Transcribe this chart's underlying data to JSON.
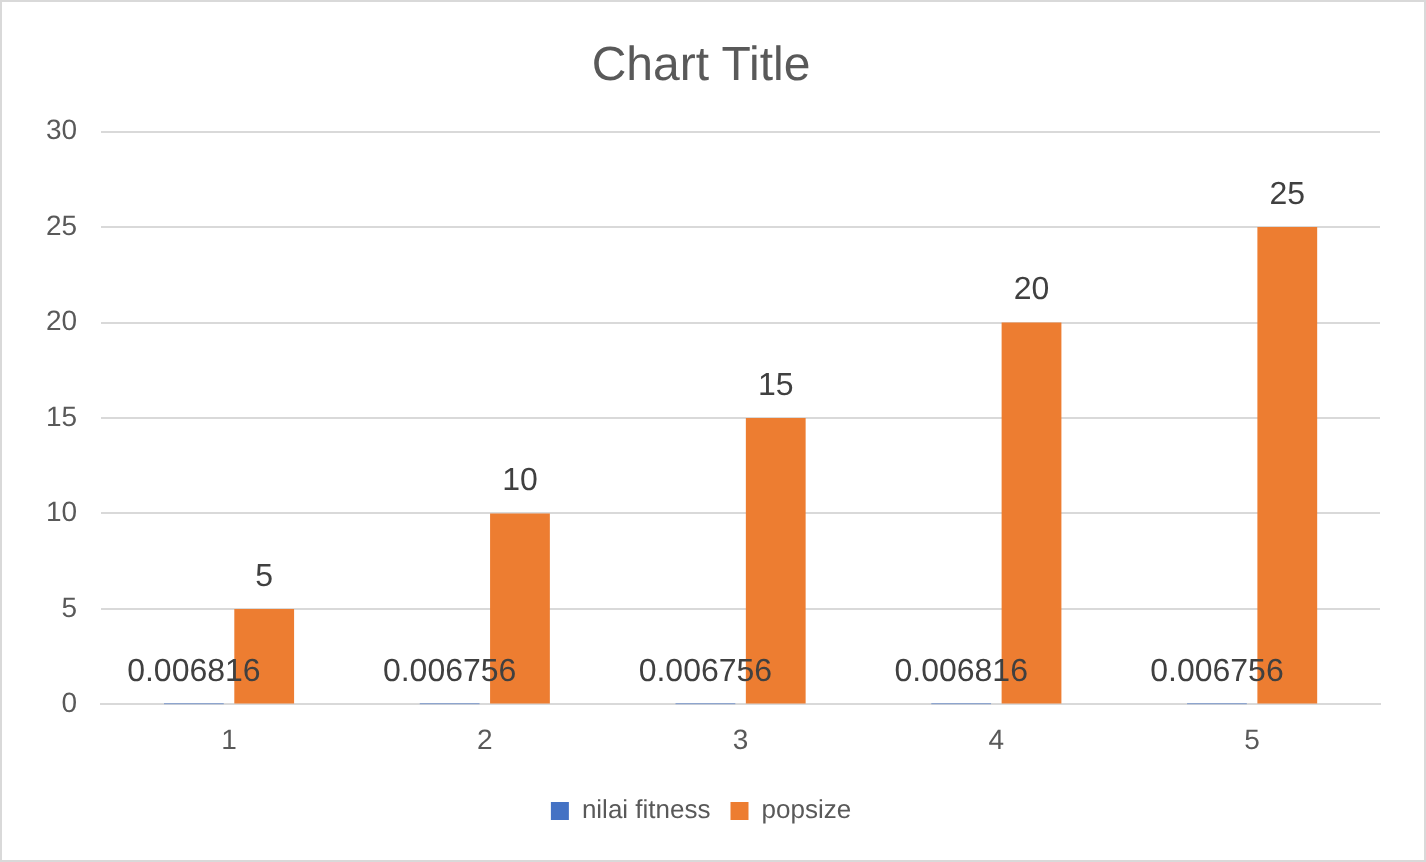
{
  "chart_data": {
    "type": "bar",
    "title": "Chart Title",
    "categories": [
      "1",
      "2",
      "3",
      "4",
      "5"
    ],
    "series": [
      {
        "name": "nilai fitness",
        "color": "#4472c4",
        "values": [
          0.006816,
          0.006756,
          0.006756,
          0.006816,
          0.006756
        ]
      },
      {
        "name": "popsize",
        "color": "#ed7d31",
        "values": [
          5,
          10,
          15,
          20,
          25
        ]
      }
    ],
    "ylim": [
      0,
      30
    ],
    "yticks": [
      0,
      5,
      10,
      15,
      20,
      25,
      30
    ],
    "grid": "y",
    "legend": "bottom",
    "data_labels": true
  }
}
